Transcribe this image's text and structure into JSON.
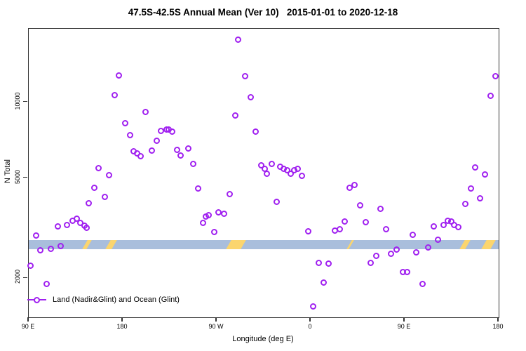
{
  "title": "47.5S-42.5S Annual Mean (Ver 10)   2015-01-01 to 2020-12-18",
  "legend": {
    "label": "Land (Nadir&Glint) and Ocean (Glint)"
  },
  "colors": {
    "point": "#a020f0",
    "band": "#a9bedc",
    "band_mark": "#fbd56e",
    "axis": "#333333"
  },
  "chart_data": {
    "type": "scatter",
    "title": "47.5S-42.5S Annual Mean (Ver 10)   2015-01-01 to 2020-12-18",
    "xlabel": "Longitude (deg E)",
    "ylabel": "N Total",
    "y_scale": "log",
    "ylim": [
      1400,
      19600
    ],
    "y_ticks": [
      2000,
      5000,
      10000
    ],
    "x_axis_span_deg": [
      0,
      450
    ],
    "x_tick_positions_deg": [
      0,
      90,
      180,
      270,
      360,
      450
    ],
    "x_tick_labels": [
      "90 E",
      "180",
      "90 W",
      "0",
      "90 E",
      "180"
    ],
    "grid": false,
    "legend_position": "bottom-left-inside",
    "series_name": "Land (Nadir&Glint) and Ocean (Glint)",
    "band": {
      "n_total_from": 2610,
      "n_total_to": 2835
    },
    "band_marks_deg": [
      {
        "t": 56,
        "w": 4
      },
      {
        "t": 79,
        "w": 6
      },
      {
        "t": 198.5,
        "w": 14
      },
      {
        "t": 308,
        "w": 2
      },
      {
        "t": 417.5,
        "w": 5.5
      },
      {
        "t": 440.5,
        "w": 9
      }
    ],
    "points_deg_vs_ntotal": [
      [
        1.5,
        2240
      ],
      [
        7.2,
        2960
      ],
      [
        11.2,
        2590
      ],
      [
        16.8,
        1900
      ],
      [
        21.3,
        2610
      ],
      [
        28,
        3210
      ],
      [
        30.7,
        2690
      ],
      [
        36.9,
        3260
      ],
      [
        41.9,
        3390
      ],
      [
        45.7,
        3440
      ],
      [
        49.7,
        3330
      ],
      [
        53.1,
        3230
      ],
      [
        55.5,
        3180
      ],
      [
        57.1,
        3980
      ],
      [
        62.7,
        4570
      ],
      [
        66.7,
        5490
      ],
      [
        73.2,
        4200
      ],
      [
        76.6,
        5150
      ],
      [
        82.4,
        10660
      ],
      [
        86.6,
        12790
      ],
      [
        92.2,
        8280
      ],
      [
        96.9,
        7410
      ],
      [
        100.3,
        6380
      ],
      [
        103.7,
        6290
      ],
      [
        107,
        6110
      ],
      [
        112,
        9180
      ],
      [
        118.2,
        6440
      ],
      [
        122.7,
        7050
      ],
      [
        126.9,
        7700
      ],
      [
        132.1,
        7820
      ],
      [
        134.3,
        7780
      ],
      [
        137.2,
        7650
      ],
      [
        142.2,
        6470
      ],
      [
        145.5,
        6140
      ],
      [
        153.1,
        6570
      ],
      [
        157.4,
        5690
      ],
      [
        162.3,
        4540
      ],
      [
        166.6,
        3330
      ],
      [
        169.9,
        3510
      ],
      [
        172.4,
        3570
      ],
      [
        177.6,
        3060
      ],
      [
        181.8,
        3650
      ],
      [
        186.9,
        3610
      ],
      [
        192.6,
        4330
      ],
      [
        197.5,
        8850
      ],
      [
        200.8,
        17700
      ],
      [
        207.2,
        12710
      ],
      [
        212.3,
        10480
      ],
      [
        217.2,
        7650
      ],
      [
        222.8,
        5610
      ],
      [
        225.7,
        5430
      ],
      [
        227.7,
        5220
      ],
      [
        232.9,
        5700
      ],
      [
        237.4,
        4020
      ],
      [
        241.1,
        5550
      ],
      [
        244.3,
        5450
      ],
      [
        247.6,
        5360
      ],
      [
        251,
        5190
      ],
      [
        254.4,
        5390
      ],
      [
        257.5,
        5460
      ],
      [
        261.6,
        5090
      ],
      [
        267.6,
        3080
      ],
      [
        272.6,
        1550
      ],
      [
        277.5,
        2300
      ],
      [
        282.1,
        1930
      ],
      [
        287.4,
        2290
      ],
      [
        293.3,
        3090
      ],
      [
        297.8,
        3140
      ],
      [
        302.9,
        3370
      ],
      [
        307.5,
        4570
      ],
      [
        312.3,
        4690
      ],
      [
        317.3,
        3890
      ],
      [
        322.5,
        3350
      ],
      [
        327.3,
        2300
      ],
      [
        332.5,
        2450
      ],
      [
        337.1,
        3770
      ],
      [
        342.2,
        3130
      ],
      [
        347.2,
        2510
      ],
      [
        352.2,
        2600
      ],
      [
        358.2,
        2120
      ],
      [
        362.2,
        2120
      ],
      [
        368,
        2980
      ],
      [
        371.4,
        2530
      ],
      [
        377.3,
        1900
      ],
      [
        382.8,
        2660
      ],
      [
        388,
        3210
      ],
      [
        392.2,
        2850
      ],
      [
        397.4,
        3250
      ],
      [
        401.4,
        3390
      ],
      [
        404.5,
        3370
      ],
      [
        407.5,
        3260
      ],
      [
        411.5,
        3190
      ],
      [
        418,
        3950
      ],
      [
        423.4,
        4550
      ],
      [
        427.6,
        5510
      ],
      [
        432.5,
        4170
      ],
      [
        437.2,
        5160
      ],
      [
        442.4,
        10590
      ],
      [
        447.3,
        12710
      ]
    ]
  }
}
